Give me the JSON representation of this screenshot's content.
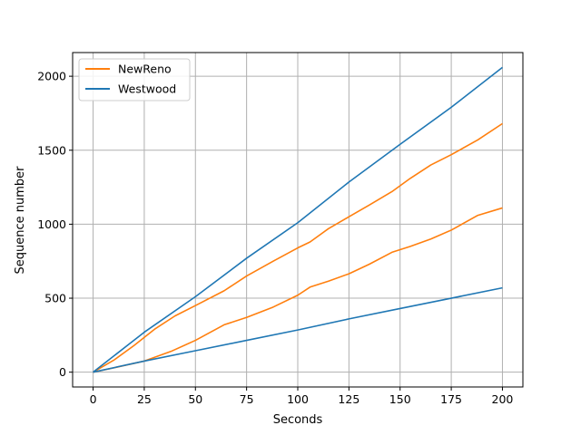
{
  "chart_data": {
    "type": "line",
    "title": "",
    "xlabel": "Seconds",
    "ylabel": "Sequence number",
    "xlim": [
      -10,
      210
    ],
    "ylim": [
      -100,
      2160
    ],
    "xticks": [
      0,
      25,
      50,
      75,
      100,
      125,
      150,
      175,
      200
    ],
    "yticks": [
      0,
      500,
      1000,
      1500,
      2000
    ],
    "grid": true,
    "legend_position": "top-left",
    "legend": [
      {
        "label": "NewReno",
        "color": "#ff7f0e"
      },
      {
        "label": "Westwood",
        "color": "#1f77b4"
      }
    ],
    "series": [
      {
        "name": "NewReno",
        "color": "#ff7f0e",
        "points": [
          [
            0,
            0
          ],
          [
            10,
            80
          ],
          [
            20,
            180
          ],
          [
            30,
            290
          ],
          [
            40,
            380
          ],
          [
            50,
            450
          ],
          [
            64,
            550
          ],
          [
            75,
            650
          ],
          [
            88,
            750
          ],
          [
            100,
            840
          ],
          [
            106,
            880
          ],
          [
            115,
            970
          ],
          [
            125,
            1050
          ],
          [
            135,
            1130
          ],
          [
            146,
            1220
          ],
          [
            155,
            1310
          ],
          [
            165,
            1400
          ],
          [
            175,
            1470
          ],
          [
            188,
            1570
          ],
          [
            200,
            1680
          ]
        ]
      },
      {
        "name": "NewReno",
        "color": "#ff7f0e",
        "points": [
          [
            0,
            0
          ],
          [
            12,
            35
          ],
          [
            25,
            75
          ],
          [
            38,
            140
          ],
          [
            50,
            215
          ],
          [
            64,
            320
          ],
          [
            75,
            370
          ],
          [
            88,
            440
          ],
          [
            100,
            520
          ],
          [
            106,
            575
          ],
          [
            115,
            615
          ],
          [
            125,
            665
          ],
          [
            135,
            730
          ],
          [
            146,
            810
          ],
          [
            155,
            850
          ],
          [
            165,
            900
          ],
          [
            175,
            960
          ],
          [
            188,
            1060
          ],
          [
            200,
            1110
          ]
        ]
      },
      {
        "name": "Westwood",
        "color": "#1f77b4",
        "points": [
          [
            0,
            0
          ],
          [
            25,
            270
          ],
          [
            50,
            510
          ],
          [
            75,
            770
          ],
          [
            100,
            1010
          ],
          [
            125,
            1285
          ],
          [
            150,
            1540
          ],
          [
            175,
            1790
          ],
          [
            200,
            2060
          ]
        ]
      },
      {
        "name": "Westwood",
        "color": "#1f77b4",
        "points": [
          [
            0,
            0
          ],
          [
            25,
            75
          ],
          [
            50,
            145
          ],
          [
            75,
            215
          ],
          [
            100,
            285
          ],
          [
            125,
            360
          ],
          [
            150,
            430
          ],
          [
            175,
            500
          ],
          [
            200,
            570
          ]
        ]
      }
    ]
  }
}
